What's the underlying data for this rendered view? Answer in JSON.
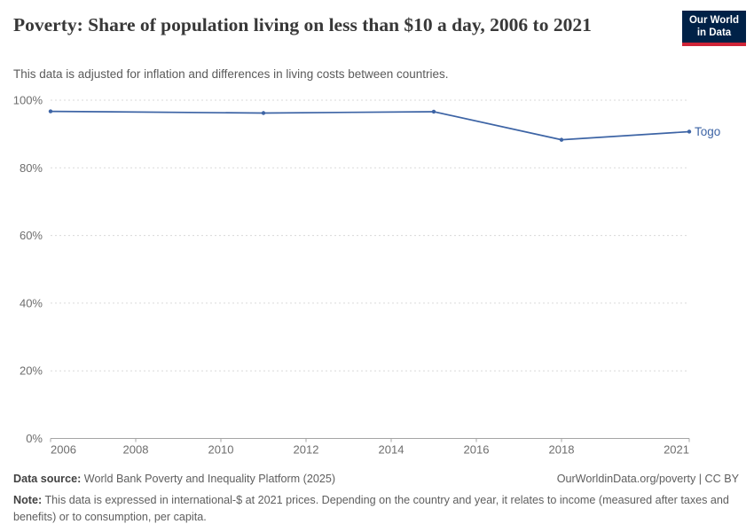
{
  "header": {
    "title": "Poverty: Share of population living on less than $10 a day, 2006 to 2021",
    "subtitle": "This data is adjusted for inflation and differences in living costs between countries.",
    "logo": {
      "line1": "Our World",
      "line2": "in Data",
      "bg_color": "#002147",
      "accent_color": "#cf2437"
    }
  },
  "chart_data": {
    "type": "line",
    "title": "Poverty: Share of population living on less than $10 a day, 2006 to 2021",
    "series": [
      {
        "name": "Togo",
        "color": "#3d64a5",
        "x": [
          2006,
          2011,
          2015,
          2018,
          2021
        ],
        "values": [
          96.7,
          96.2,
          96.6,
          88.3,
          90.7
        ]
      }
    ],
    "entity_label": "Togo",
    "xlim": [
      2006,
      2021
    ],
    "ylim": [
      0,
      100
    ],
    "x_ticks": [
      2006,
      2008,
      2010,
      2012,
      2014,
      2016,
      2018,
      2021
    ],
    "y_ticks": [
      0,
      20,
      40,
      60,
      80,
      100
    ],
    "y_tick_suffix": "%",
    "grid": "horizontal-dashed",
    "grid_color": "#dadada",
    "axis_color": "#a5a5a5",
    "tick_label_color": "#6e6e6e",
    "legend_position": "end-of-line-label"
  },
  "footer": {
    "data_source_label": "Data source:",
    "data_source": "World Bank Poverty and Inequality Platform (2025)",
    "link": "OurWorldinData.org/poverty | CC BY",
    "note_label": "Note:",
    "note": "This data is expressed in international-$ at 2021 prices. Depending on the country and year, it relates to income (measured after taxes and benefits) or to consumption, per capita."
  }
}
